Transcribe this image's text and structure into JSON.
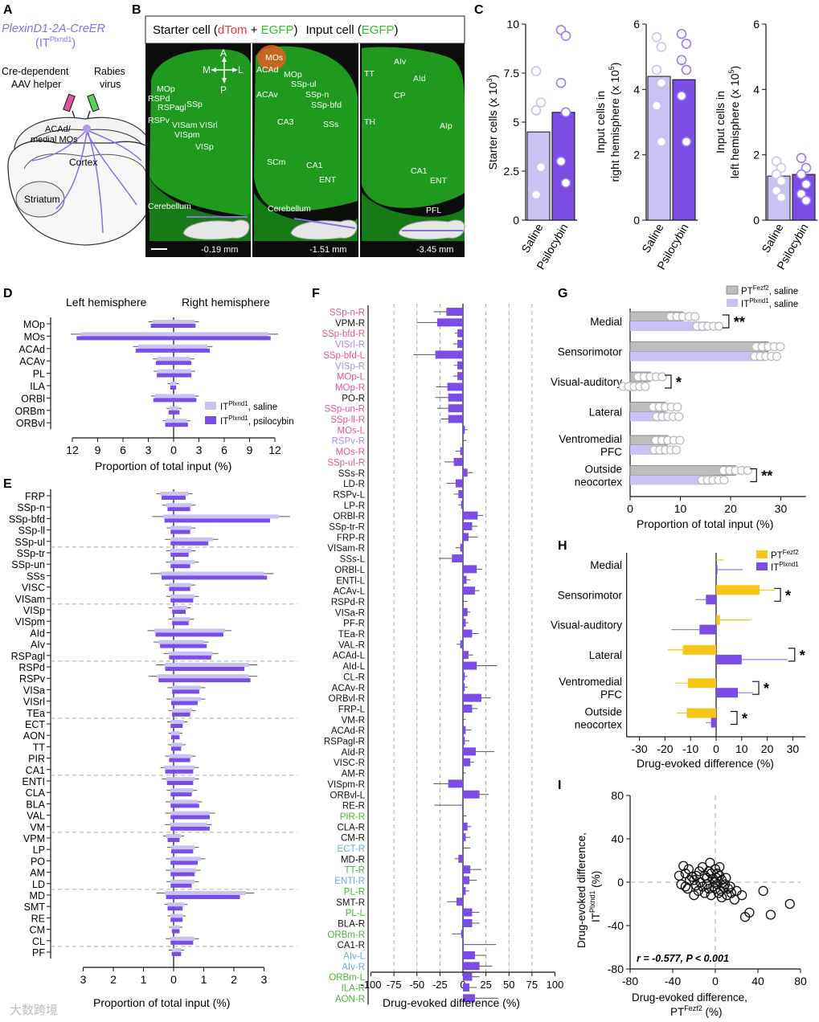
{
  "colors": {
    "it_saline": "#c9c3f4",
    "it_psilo": "#7b4de6",
    "pt_saline": "#bdbdbd",
    "pt_yellow": "#f5c518",
    "micro_bg": "#0b0d0b",
    "micro_green": "#1f9a1f",
    "label_pink": "#e0559b",
    "label_lav": "#a88ee8",
    "label_blue": "#6aa7e8",
    "label_green": "#4caf3a"
  },
  "panel_letters": [
    "A",
    "B",
    "C",
    "D",
    "E",
    "F",
    "G",
    "H",
    "I"
  ],
  "panelA": {
    "title": "PlexinD1-2A-CreER",
    "subtitle_main": "(IT",
    "subtitle_sup": "Plxnd1",
    "subtitle_end": ")",
    "helper_line1": "Cre-dependent",
    "helper_line2": "AAV helper",
    "rabies_line1": "Rabies",
    "rabies_line2": "virus",
    "region1": "ACAd/",
    "region2": "medial MOs",
    "cortex": "Cortex",
    "striatum": "Striatum"
  },
  "panelB": {
    "header_starter": "Starter cell (",
    "header_dtom": "dTom",
    "header_plus": " + ",
    "header_egfp": "EGFP",
    "header_close": ")",
    "header_input": "Input cell  (",
    "header_egfp2": "EGFP",
    "header_close2": ")",
    "compass": {
      "a": "A",
      "p": "P",
      "m": "M",
      "l": "L"
    },
    "image1_labels": [
      "MOp",
      "RSPd",
      "RSPagl",
      "SSp",
      "RSPv",
      "VISam",
      "VISrl",
      "VISpm",
      "VISp",
      "Cerebellum"
    ],
    "image2_labels": [
      "MOs",
      "ACAd",
      "MOp",
      "SSp-ul",
      "ACAv",
      "SSp-n",
      "SSp-bfd",
      "CA3",
      "SSs",
      "SCm",
      "CA1",
      "ENT",
      "Cerebellum"
    ],
    "image3_labels": [
      "AIv",
      "TT",
      "AId",
      "CP",
      "TH",
      "AIp",
      "CA1",
      "ENT",
      "PFL"
    ],
    "depths": [
      "-0.19 mm",
      "-1.51 mm",
      "-3.45 mm"
    ]
  },
  "panelC": {
    "xcats": [
      "Saline",
      "Psilocybin"
    ],
    "plots": [
      {
        "ylabel": "Starter cells (x 10",
        "ylabel_sup": "3",
        "ylabel_end": ")",
        "ymax": 10,
        "ticks": [
          "0",
          "2.5",
          "5",
          "7.5",
          "10"
        ],
        "bars": [
          4.5,
          5.5
        ],
        "saline_pts": [
          7.6,
          6.0,
          5.6,
          2.7,
          1.3
        ],
        "psilo_pts": [
          9.7,
          9.4,
          7.0,
          5.5,
          3.0,
          1.9
        ]
      },
      {
        "ylabel": "Input cells in right hemisphere (x 10",
        "ylabel_sup": "5",
        "ylabel_end": ")",
        "ymax": 6,
        "ticks": [
          "0",
          "2",
          "4",
          "6"
        ],
        "bars": [
          4.4,
          4.3
        ],
        "saline_pts": [
          5.6,
          5.3,
          4.6,
          4.2,
          3.5,
          2.4
        ],
        "psilo_pts": [
          5.7,
          5.4,
          4.9,
          4.6,
          3.8,
          2.4
        ]
      },
      {
        "ylabel": "Input cells in left hemisphere (x 10",
        "ylabel_sup": "5",
        "ylabel_end": ")",
        "ymax": 6,
        "ticks": [
          "0",
          "2",
          "4",
          "6"
        ],
        "bars": [
          1.35,
          1.4
        ],
        "saline_pts": [
          1.8,
          1.6,
          1.4,
          1.2,
          0.9,
          0.7
        ],
        "psilo_pts": [
          1.9,
          1.6,
          1.4,
          1.1,
          0.8,
          0.6
        ]
      }
    ]
  },
  "chart_data": [
    {
      "panel": "D",
      "type": "bar",
      "orientation": "horizontal",
      "left_title": "Left hemisphere",
      "right_title": "Right hemisphere",
      "xlabel": "Proportion of total input (%)",
      "xticks": [
        "12",
        "9",
        "6",
        "3",
        "0",
        "3",
        "6",
        "9",
        "12"
      ],
      "legend_saline_main": "IT",
      "legend_saline_sup": "Plxnd1",
      "legend_saline_end": ", saline",
      "legend_psilo_main": "IT",
      "legend_psilo_sup": "Plxnd1",
      "legend_psilo_end": ", psilocybin",
      "categories": [
        "MOp",
        "MOs",
        "ACAd",
        "ACAv",
        "PL",
        "ILA",
        "ORBl",
        "ORBm",
        "ORBvl"
      ],
      "left_saline": [
        2.5,
        11.0,
        4.2,
        2.0,
        1.9,
        0.4,
        2.2,
        0.5,
        0.9
      ],
      "left_psilo": [
        2.7,
        11.5,
        4.5,
        2.1,
        2.0,
        0.4,
        2.4,
        0.6,
        1.0
      ],
      "right_saline": [
        2.5,
        11.2,
        4.0,
        2.0,
        2.1,
        0.3,
        2.5,
        0.6,
        1.6
      ],
      "right_psilo": [
        2.6,
        11.5,
        4.3,
        2.1,
        2.1,
        0.3,
        2.7,
        0.7,
        1.7
      ]
    },
    {
      "panel": "E",
      "type": "bar",
      "orientation": "horizontal",
      "xlabel": "Proportion of total input (%)",
      "xticks": [
        "3",
        "2",
        "1",
        "0",
        "1",
        "2",
        "3"
      ],
      "categories": [
        "FRP",
        "SSp-n",
        "SSp-bfd",
        "SSp-ll",
        "SSp-ul",
        "SSp-tr",
        "SSp-un",
        "SSs",
        "VISC",
        "VISam",
        "VISp",
        "VISpm",
        "AId",
        "AIv",
        "RSPagl",
        "RSPd",
        "RSPv",
        "VISa",
        "VISrl",
        "TEa",
        "ECT",
        "AON",
        "TT",
        "PIR",
        "CA1",
        "ENTI",
        "CLA",
        "BLA",
        "VAL",
        "VM",
        "VPM",
        "LP",
        "PO",
        "AM",
        "LD",
        "MD",
        "SMT",
        "RE",
        "CM",
        "CL",
        "PF"
      ],
      "left_saline": [
        0.45,
        0.25,
        0.35,
        0.1,
        0.1,
        0.12,
        0.12,
        0.45,
        0.15,
        0.1,
        0.05,
        0.05,
        0.65,
        0.5,
        0.15,
        0.3,
        0.55,
        0.05,
        0.08,
        0.05,
        0.1,
        0.08,
        0.08,
        0.15,
        0.3,
        0.25,
        0.1,
        0.12,
        0.1,
        0.12,
        0.25,
        0.08,
        0.1,
        0.12,
        0.1,
        0.3,
        0.2,
        0.1,
        0.06,
        0.12,
        0.06
      ],
      "left_psilo": [
        0.4,
        0.2,
        0.3,
        0.1,
        0.1,
        0.1,
        0.1,
        0.4,
        0.15,
        0.1,
        0.05,
        0.05,
        0.6,
        0.45,
        0.15,
        0.28,
        0.5,
        0.05,
        0.08,
        0.05,
        0.1,
        0.08,
        0.08,
        0.15,
        0.28,
        0.22,
        0.1,
        0.1,
        0.1,
        0.1,
        0.2,
        0.08,
        0.1,
        0.1,
        0.1,
        0.25,
        0.2,
        0.1,
        0.06,
        0.1,
        0.06
      ],
      "right_saline": [
        0.5,
        0.6,
        3.5,
        0.6,
        1.3,
        0.6,
        0.7,
        3.0,
        0.6,
        0.7,
        0.45,
        0.55,
        1.7,
        1.0,
        1.3,
        2.5,
        2.5,
        0.9,
        0.9,
        0.6,
        0.35,
        0.2,
        0.3,
        0.6,
        0.7,
        0.7,
        0.65,
        0.8,
        1.2,
        1.1,
        0.25,
        0.7,
        0.9,
        0.75,
        0.7,
        2.4,
        0.35,
        0.3,
        0.2,
        0.7,
        0.25
      ],
      "right_psilo": [
        0.4,
        0.55,
        3.2,
        0.55,
        1.15,
        0.5,
        0.55,
        3.1,
        0.55,
        0.65,
        0.4,
        0.5,
        1.65,
        1.1,
        1.25,
        2.35,
        2.55,
        0.85,
        0.8,
        0.55,
        0.3,
        0.2,
        0.25,
        0.55,
        0.65,
        0.65,
        0.6,
        0.85,
        1.2,
        1.2,
        0.2,
        0.65,
        0.8,
        0.7,
        0.6,
        2.2,
        0.3,
        0.3,
        0.2,
        0.65,
        0.25
      ]
    },
    {
      "panel": "F",
      "type": "bar",
      "orientation": "horizontal",
      "xlabel": "Drug-evoked difference (%)",
      "xlim": [
        -100,
        100
      ],
      "xticks": [
        "-100",
        "-75",
        "-50",
        "-25",
        "0",
        "25",
        "50",
        "75",
        "100"
      ],
      "categories": [
        "SSp-n-R",
        "VPM-R",
        "SSp-bfd-R",
        "VISrl-R",
        "SSp-bfd-L",
        "VISp-R",
        "MOp-L",
        "MOp-R",
        "PO-R",
        "SSp-un-R",
        "SSp-ll-R",
        "MOs-L",
        "RSPv-R",
        "MOs-R",
        "SSp-ul-R",
        "SSs-R",
        "LD-R",
        "RSPv-L",
        "LP-R",
        "ORBl-R",
        "SSp-tr-R",
        "FRP-R",
        "VISam-R",
        "SSs-L",
        "ORBl-L",
        "ENTl-L",
        "ACAv-L",
        "RSPd-R",
        "VISa-R",
        "PF-R",
        "TEa-R",
        "VAL-R",
        "ACAd-L",
        "AId-L",
        "CL-R",
        "ACAv-R",
        "ORBvl-R",
        "FRP-L",
        "VM-R",
        "ACAd-R",
        "RSPagl-R",
        "AId-R",
        "VISC-R",
        "AM-R",
        "VISpm-R",
        "ORBvl-L",
        "RE-R",
        "PIR-R",
        "CLA-R",
        "CM-R",
        "ECT-R",
        "MD-R",
        "TT-R",
        "ENTl-R",
        "PL-R",
        "SMT-R",
        "PL-L",
        "BLA-R",
        "ORBm-R",
        "CA1-R",
        "AIv-L",
        "AIv-R",
        "ORBm-L",
        "ILA-R",
        "AON-R"
      ],
      "label_colors": [
        "pink",
        "black",
        "pink",
        "lav",
        "pink",
        "lav",
        "pink",
        "pink",
        "black",
        "pink",
        "pink",
        "pink",
        "lav",
        "pink",
        "pink",
        "black",
        "black",
        "black",
        "black",
        "black",
        "black",
        "black",
        "black",
        "black",
        "black",
        "black",
        "black",
        "black",
        "black",
        "black",
        "black",
        "black",
        "black",
        "black",
        "black",
        "black",
        "black",
        "black",
        "black",
        "black",
        "black",
        "black",
        "black",
        "black",
        "black",
        "black",
        "black",
        "green",
        "black",
        "black",
        "blue",
        "black",
        "green",
        "blue",
        "green",
        "black",
        "green",
        "black",
        "green",
        "black",
        "blue",
        "blue",
        "green",
        "green",
        "green"
      ],
      "values": [
        -18,
        -28,
        -6,
        -6,
        -30,
        -6,
        -6,
        -17,
        -16,
        -16,
        -16,
        2,
        0,
        -3,
        -10,
        5,
        -8,
        -5,
        -2,
        16,
        10,
        6,
        -3,
        -12,
        15,
        4,
        13,
        0,
        5,
        3,
        10,
        -3,
        6,
        15,
        2,
        2,
        20,
        10,
        0,
        3,
        2,
        14,
        8,
        0,
        -16,
        18,
        -1,
        0,
        5,
        3,
        0,
        -5,
        8,
        7,
        3,
        -7,
        10,
        10,
        -2,
        1,
        13,
        18,
        10,
        7,
        13
      ],
      "errors": [
        14,
        22,
        3,
        5,
        24,
        4,
        5,
        12,
        14,
        12,
        8,
        3,
        4,
        5,
        10,
        6,
        10,
        5,
        3,
        6,
        6,
        10,
        5,
        14,
        6,
        4,
        5,
        5,
        3,
        3,
        7,
        4,
        5,
        22,
        3,
        3,
        10,
        6,
        3,
        6,
        5,
        20,
        4,
        3,
        16,
        10,
        30,
        4,
        4,
        5,
        8,
        4,
        12,
        8,
        4,
        10,
        8,
        8,
        10,
        35,
        12,
        14,
        8,
        8,
        25
      ]
    },
    {
      "panel": "G",
      "type": "bar",
      "orientation": "horizontal",
      "xlabel": "Proportion of total input (%)",
      "xlim": [
        0,
        35
      ],
      "xticks": [
        "0",
        "10",
        "20",
        "30"
      ],
      "legend_pt_main": "PT",
      "legend_pt_sup": "Fezf2",
      "legend_pt_end": ", saline",
      "legend_it_main": "IT",
      "legend_it_sup": "Plxnd1",
      "legend_it_end": ", saline",
      "categories": [
        "Medial",
        "Sensorimotor",
        "Visual-auditory",
        "Lateral",
        "Ventromedial\nPFC",
        "Outside\nneocortex"
      ],
      "pt_values": [
        10.5,
        27.5,
        4.0,
        7.0,
        7.5,
        21.0
      ],
      "it_values": [
        15.5,
        27.0,
        0.8,
        7.5,
        7.0,
        16.5
      ],
      "significance": [
        "**",
        "",
        "*",
        "",
        "",
        "**"
      ]
    },
    {
      "panel": "H",
      "type": "bar",
      "orientation": "horizontal",
      "xlabel": "Drug-evoked difference (%)",
      "xlim": [
        -35,
        35
      ],
      "xticks": [
        "-30",
        "-20",
        "-10",
        "0",
        "10",
        "20",
        "30"
      ],
      "legend_pt_main": "PT",
      "legend_pt_sup": "Fezf2",
      "legend_it_main": "IT",
      "legend_it_sup": "Plxnd1",
      "categories": [
        "Medial",
        "Sensorimotor",
        "Visual-auditory",
        "Lateral",
        "Ventromedial\nPFC",
        "Outside\nneocortex"
      ],
      "pt_values": [
        0,
        17,
        1.5,
        -13,
        -11,
        -11.5
      ],
      "it_values": [
        0.5,
        -4,
        -6.5,
        10,
        8.5,
        -2
      ],
      "pt_errors": [
        3,
        6,
        12,
        6,
        5,
        4
      ],
      "it_errors": [
        10,
        4,
        11,
        18,
        6,
        2
      ],
      "significance": [
        "",
        "*",
        "",
        "*",
        "*",
        "*"
      ]
    },
    {
      "panel": "I",
      "type": "scatter",
      "xlabel_main": "Drug-evoked difference,",
      "xlabel_sub_main": "PT",
      "xlabel_sub_sup": "Fezf2",
      "xlabel_sub_end": " (%)",
      "ylabel_main": "Drug-evoked difference,",
      "ylabel_sub_main": "IT",
      "ylabel_sub_sup": "Plxnd1",
      "ylabel_sub_end": " (%)",
      "xlim": [
        -80,
        80
      ],
      "ylim": [
        -80,
        80
      ],
      "xticks": [
        "-80",
        "-40",
        "0",
        "40",
        "80"
      ],
      "yticks": [
        "80",
        "40",
        "0",
        "-40",
        "-80"
      ],
      "stat_text": "r = -0.577, P < 0.001",
      "points": [
        [
          -30,
          15
        ],
        [
          -28,
          8
        ],
        [
          -25,
          12
        ],
        [
          -22,
          5
        ],
        [
          -20,
          2
        ],
        [
          -18,
          -3
        ],
        [
          -15,
          10
        ],
        [
          -12,
          14
        ],
        [
          -10,
          6
        ],
        [
          -8,
          -2
        ],
        [
          -5,
          18
        ],
        [
          -4,
          8
        ],
        [
          -2,
          3
        ],
        [
          0,
          12
        ],
        [
          2,
          -2
        ],
        [
          4,
          6
        ],
        [
          5,
          -8
        ],
        [
          6,
          2
        ],
        [
          8,
          -5
        ],
        [
          10,
          4
        ],
        [
          12,
          -6
        ],
        [
          15,
          -10
        ],
        [
          18,
          -16
        ],
        [
          20,
          -8
        ],
        [
          25,
          -12
        ],
        [
          28,
          -32
        ],
        [
          32,
          -28
        ],
        [
          45,
          -8
        ],
        [
          52,
          -30
        ],
        [
          70,
          -20
        ],
        [
          -32,
          -2
        ],
        [
          -26,
          -6
        ],
        [
          -24,
          2
        ],
        [
          -16,
          -8
        ],
        [
          -14,
          0
        ],
        [
          -12,
          -4
        ],
        [
          -8,
          4
        ],
        [
          -6,
          -6
        ],
        [
          -4,
          -12
        ],
        [
          -2,
          -4
        ],
        [
          0,
          -6
        ],
        [
          1,
          4
        ],
        [
          3,
          -10
        ],
        [
          6,
          -14
        ],
        [
          9,
          -2
        ],
        [
          11,
          -12
        ],
        [
          14,
          -4
        ],
        [
          -20,
          -12
        ],
        [
          -10,
          -10
        ],
        [
          2,
          8
        ],
        [
          -6,
          10
        ],
        [
          -18,
          6
        ],
        [
          0,
          0
        ],
        [
          4,
          14
        ],
        [
          -28,
          -4
        ],
        [
          -34,
          6
        ]
      ]
    }
  ],
  "watermark": "大数跨境"
}
